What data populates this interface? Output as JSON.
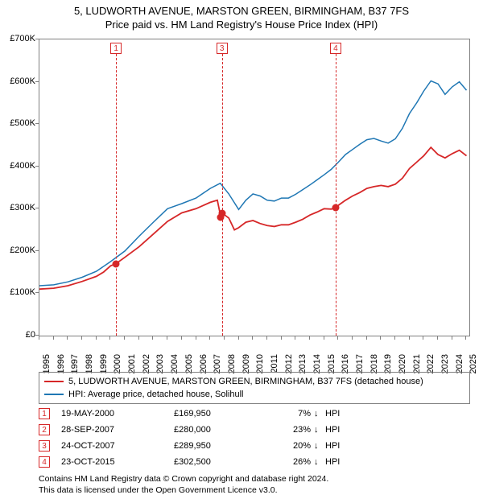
{
  "title_main": "5, LUDWORTH AVENUE, MARSTON GREEN, BIRMINGHAM, B37 7FS",
  "title_sub": "Price paid vs. HM Land Registry's House Price Index (HPI)",
  "chart": {
    "type": "line",
    "xlim": [
      1995,
      2025.2
    ],
    "ylim": [
      0,
      700
    ],
    "ytick_step": 100,
    "ytick_prefix": "£",
    "ytick_suffix": "K",
    "xtick_years": [
      1995,
      1996,
      1997,
      1998,
      1999,
      2000,
      2001,
      2002,
      2003,
      2004,
      2005,
      2006,
      2007,
      2008,
      2009,
      2010,
      2011,
      2012,
      2013,
      2014,
      2015,
      2016,
      2017,
      2018,
      2019,
      2020,
      2021,
      2022,
      2023,
      2024,
      2025
    ],
    "background_color": "#ffffff",
    "border_color": "#808080",
    "font_size_axis": 11,
    "series": {
      "property": {
        "color": "#d62728",
        "line_width": 1.8,
        "points": [
          [
            1995.0,
            110
          ],
          [
            1996.0,
            112
          ],
          [
            1997.0,
            118
          ],
          [
            1998.0,
            128
          ],
          [
            1999.0,
            140
          ],
          [
            1999.5,
            150
          ],
          [
            2000.0,
            165
          ],
          [
            2000.38,
            170
          ],
          [
            2001.0,
            185
          ],
          [
            2002.0,
            210
          ],
          [
            2003.0,
            240
          ],
          [
            2004.0,
            270
          ],
          [
            2005.0,
            290
          ],
          [
            2006.0,
            300
          ],
          [
            2007.0,
            315
          ],
          [
            2007.5,
            320
          ],
          [
            2007.74,
            280
          ],
          [
            2007.82,
            290
          ],
          [
            2008.3,
            278
          ],
          [
            2008.7,
            250
          ],
          [
            2009.0,
            255
          ],
          [
            2009.5,
            268
          ],
          [
            2010.0,
            272
          ],
          [
            2010.5,
            265
          ],
          [
            2011.0,
            260
          ],
          [
            2011.5,
            258
          ],
          [
            2012.0,
            262
          ],
          [
            2012.5,
            262
          ],
          [
            2013.0,
            268
          ],
          [
            2013.5,
            275
          ],
          [
            2014.0,
            285
          ],
          [
            2014.5,
            292
          ],
          [
            2015.0,
            300
          ],
          [
            2015.5,
            299
          ],
          [
            2015.81,
            302
          ],
          [
            2016.0,
            308
          ],
          [
            2016.5,
            320
          ],
          [
            2017.0,
            330
          ],
          [
            2017.5,
            338
          ],
          [
            2018.0,
            348
          ],
          [
            2018.5,
            352
          ],
          [
            2019.0,
            355
          ],
          [
            2019.5,
            352
          ],
          [
            2020.0,
            358
          ],
          [
            2020.5,
            372
          ],
          [
            2021.0,
            395
          ],
          [
            2021.5,
            410
          ],
          [
            2022.0,
            425
          ],
          [
            2022.5,
            445
          ],
          [
            2023.0,
            428
          ],
          [
            2023.5,
            420
          ],
          [
            2024.0,
            430
          ],
          [
            2024.5,
            438
          ],
          [
            2025.0,
            425
          ]
        ]
      },
      "hpi": {
        "color": "#1f77b4",
        "line_width": 1.5,
        "points": [
          [
            1995.0,
            118
          ],
          [
            1996.0,
            120
          ],
          [
            1997.0,
            127
          ],
          [
            1998.0,
            138
          ],
          [
            1999.0,
            152
          ],
          [
            2000.0,
            175
          ],
          [
            2001.0,
            200
          ],
          [
            2002.0,
            235
          ],
          [
            2003.0,
            268
          ],
          [
            2004.0,
            300
          ],
          [
            2005.0,
            312
          ],
          [
            2006.0,
            325
          ],
          [
            2007.0,
            348
          ],
          [
            2007.7,
            360
          ],
          [
            2008.3,
            335
          ],
          [
            2009.0,
            298
          ],
          [
            2009.5,
            320
          ],
          [
            2010.0,
            335
          ],
          [
            2010.5,
            330
          ],
          [
            2011.0,
            320
          ],
          [
            2011.5,
            318
          ],
          [
            2012.0,
            325
          ],
          [
            2012.5,
            325
          ],
          [
            2013.0,
            334
          ],
          [
            2013.5,
            345
          ],
          [
            2014.0,
            356
          ],
          [
            2014.5,
            368
          ],
          [
            2015.0,
            380
          ],
          [
            2015.5,
            393
          ],
          [
            2016.0,
            410
          ],
          [
            2016.5,
            428
          ],
          [
            2017.0,
            440
          ],
          [
            2017.5,
            452
          ],
          [
            2018.0,
            463
          ],
          [
            2018.5,
            466
          ],
          [
            2019.0,
            460
          ],
          [
            2019.5,
            455
          ],
          [
            2020.0,
            465
          ],
          [
            2020.5,
            490
          ],
          [
            2021.0,
            525
          ],
          [
            2021.5,
            550
          ],
          [
            2022.0,
            578
          ],
          [
            2022.5,
            602
          ],
          [
            2023.0,
            595
          ],
          [
            2023.5,
            570
          ],
          [
            2024.0,
            588
          ],
          [
            2024.5,
            600
          ],
          [
            2025.0,
            580
          ]
        ]
      }
    }
  },
  "sales": [
    {
      "n": "1",
      "year": 2000.38,
      "price": 169.95,
      "date": "19-MAY-2000",
      "price_str": "£169,950",
      "diff_pct": "7%",
      "arrow": "↓",
      "color": "#d62728"
    },
    {
      "n": "2",
      "year": 2007.74,
      "price": 280.0,
      "date": "28-SEP-2007",
      "price_str": "£280,000",
      "diff_pct": "23%",
      "arrow": "↓",
      "color": "#d62728"
    },
    {
      "n": "3",
      "year": 2007.82,
      "price": 289.95,
      "date": "24-OCT-2007",
      "price_str": "£289,950",
      "diff_pct": "20%",
      "arrow": "↓",
      "color": "#d62728"
    },
    {
      "n": "4",
      "year": 2015.81,
      "price": 302.5,
      "date": "23-OCT-2015",
      "price_str": "£302,500",
      "diff_pct": "26%",
      "arrow": "↓",
      "color": "#d62728"
    }
  ],
  "legend": {
    "property": {
      "label": "5, LUDWORTH AVENUE, MARSTON GREEN, BIRMINGHAM, B37 7FS (detached house)",
      "color": "#d62728"
    },
    "hpi": {
      "label": "HPI: Average price, detached house, Solihull",
      "color": "#1f77b4"
    }
  },
  "trans_hpi_label": "HPI",
  "footer_line1": "Contains HM Land Registry data © Crown copyright and database right 2024.",
  "footer_line2": "This data is licensed under the Open Government Licence v3.0."
}
